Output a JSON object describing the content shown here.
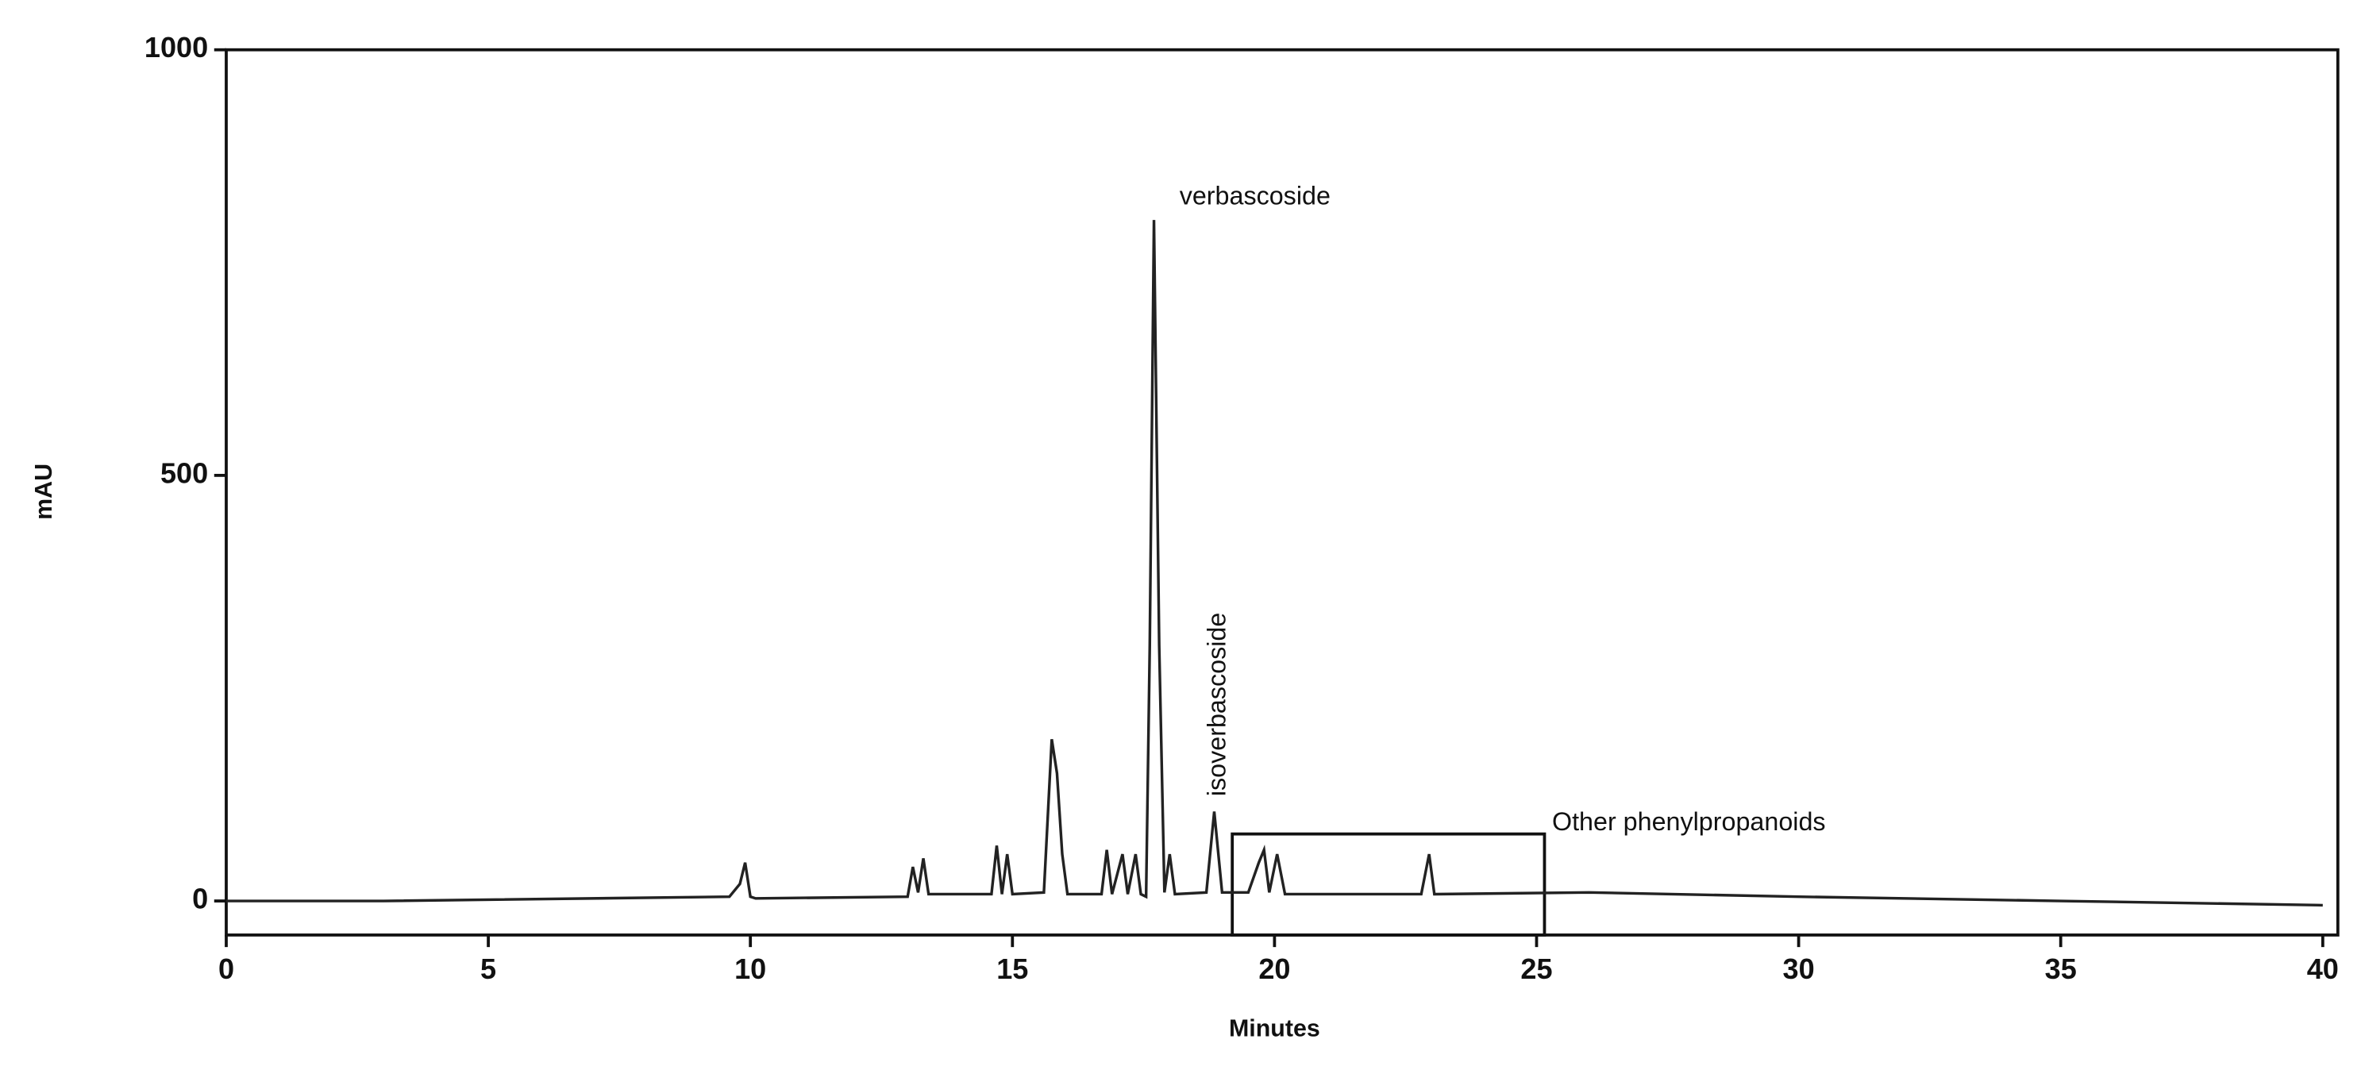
{
  "chart_data": {
    "type": "line",
    "x_label": "Minutes",
    "y_label": "mAU",
    "annotations": [
      "verbascoside",
      "isoverbascoside",
      "Other phenylpropanoids"
    ],
    "x": [
      0,
      3,
      9.6,
      9.8,
      9.9,
      10.0,
      10.1,
      13,
      13.1,
      13.2,
      13.3,
      13.4,
      14.6,
      14.7,
      14.8,
      14.9,
      15.0,
      15.6,
      15.75,
      15.85,
      15.95,
      16.05,
      16.7,
      16.8,
      16.9,
      17.1,
      17.2,
      17.35,
      17.45,
      17.55,
      17.62,
      17.7,
      17.8,
      17.9,
      18.0,
      18.1,
      18.7,
      18.85,
      19.0,
      19.5,
      19.7,
      19.8,
      19.9,
      20.05,
      20.2,
      22.8,
      22.95,
      23.05,
      26,
      30,
      35,
      40
    ],
    "series": [
      {
        "name": "mAU",
        "color": "#222222",
        "values": [
          0,
          0,
          5,
          20,
          45,
          5,
          3,
          5,
          40,
          10,
          50,
          8,
          8,
          65,
          8,
          55,
          8,
          10,
          190,
          150,
          55,
          8,
          8,
          60,
          8,
          55,
          8,
          55,
          8,
          5,
          300,
          800,
          300,
          10,
          55,
          8,
          10,
          105,
          10,
          10,
          45,
          60,
          10,
          55,
          8,
          8,
          55,
          8,
          10,
          5,
          0,
          -5
        ]
      }
    ],
    "xlim": [
      0,
      40
    ],
    "xticks": [
      0,
      5,
      10,
      15,
      20,
      25,
      30,
      35,
      40
    ],
    "ylim": [
      -40,
      1000
    ],
    "yticks": [
      0,
      500,
      1000
    ]
  }
}
